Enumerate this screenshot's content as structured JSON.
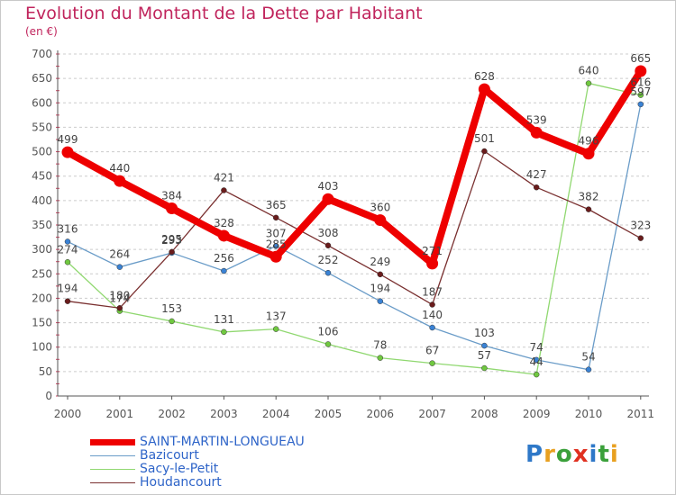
{
  "header": {
    "title": "Evolution du Montant de la Dette par Habitant",
    "subtitle": "(en €)"
  },
  "colors": {
    "title": "#c0245c",
    "axis": "#555555",
    "grid": "#cccccc",
    "legend_text": "#2e64c8"
  },
  "logo": {
    "text": "Proxiti",
    "letter_colors": [
      "#2e78c8",
      "#e8a020",
      "#3aa03a",
      "#e03020",
      "#2e78c8",
      "#3aa03a",
      "#e8a020"
    ]
  },
  "chart_data": {
    "type": "line",
    "title": "Evolution du Montant de la Dette par Habitant",
    "subtitle": "(en €)",
    "xlabel": "",
    "ylabel": "",
    "x": [
      "2000",
      "2001",
      "2002",
      "2003",
      "2004",
      "2005",
      "2006",
      "2007",
      "2008",
      "2009",
      "2010",
      "2011"
    ],
    "ylim": [
      0,
      700
    ],
    "yticks": [
      "0",
      "50",
      "100",
      "150",
      "200",
      "250",
      "300",
      "350",
      "400",
      "450",
      "500",
      "550",
      "600",
      "650",
      "700"
    ],
    "grid": "horizontal dashed",
    "legend_position": "bottom-left",
    "series": [
      {
        "name": "SAINT-MARTIN-LONGUEAU",
        "color": "#ee0000",
        "marker_color": "#ee0000",
        "values": [
          499,
          440,
          384,
          328,
          285,
          403,
          360,
          271,
          628,
          539,
          496,
          665
        ],
        "labels": [
          "499",
          "440",
          "384",
          "328",
          "285",
          "403",
          "360",
          "271",
          "628",
          "539",
          "496",
          "665"
        ]
      },
      {
        "name": "Bazicourt",
        "color": "#6a9cc8",
        "marker_color": "#3a82d4",
        "values": [
          316,
          264,
          293,
          256,
          307,
          252,
          194,
          140,
          103,
          74,
          54,
          597
        ],
        "labels": [
          "316",
          "264",
          "293",
          "256",
          "307",
          "252",
          "194",
          "140",
          "103",
          "74",
          "54",
          "597"
        ]
      },
      {
        "name": "Sacy-le-Petit",
        "color": "#90d870",
        "marker_color": "#70c840",
        "values": [
          274,
          174,
          153,
          131,
          137,
          106,
          78,
          67,
          57,
          44,
          640,
          616
        ],
        "labels": [
          "274",
          "174",
          "153",
          "131",
          "137",
          "106",
          "78",
          "67",
          "57",
          "44",
          "640",
          "616"
        ]
      },
      {
        "name": "Houdancourt",
        "color": "#7a3030",
        "marker_color": "#6a1c1c",
        "values": [
          194,
          180,
          295,
          421,
          365,
          308,
          249,
          187,
          501,
          427,
          382,
          323
        ],
        "labels": [
          "194",
          "180",
          "295",
          "421",
          "365",
          "308",
          "249",
          "187",
          "501",
          "427",
          "382",
          "323"
        ]
      }
    ]
  }
}
